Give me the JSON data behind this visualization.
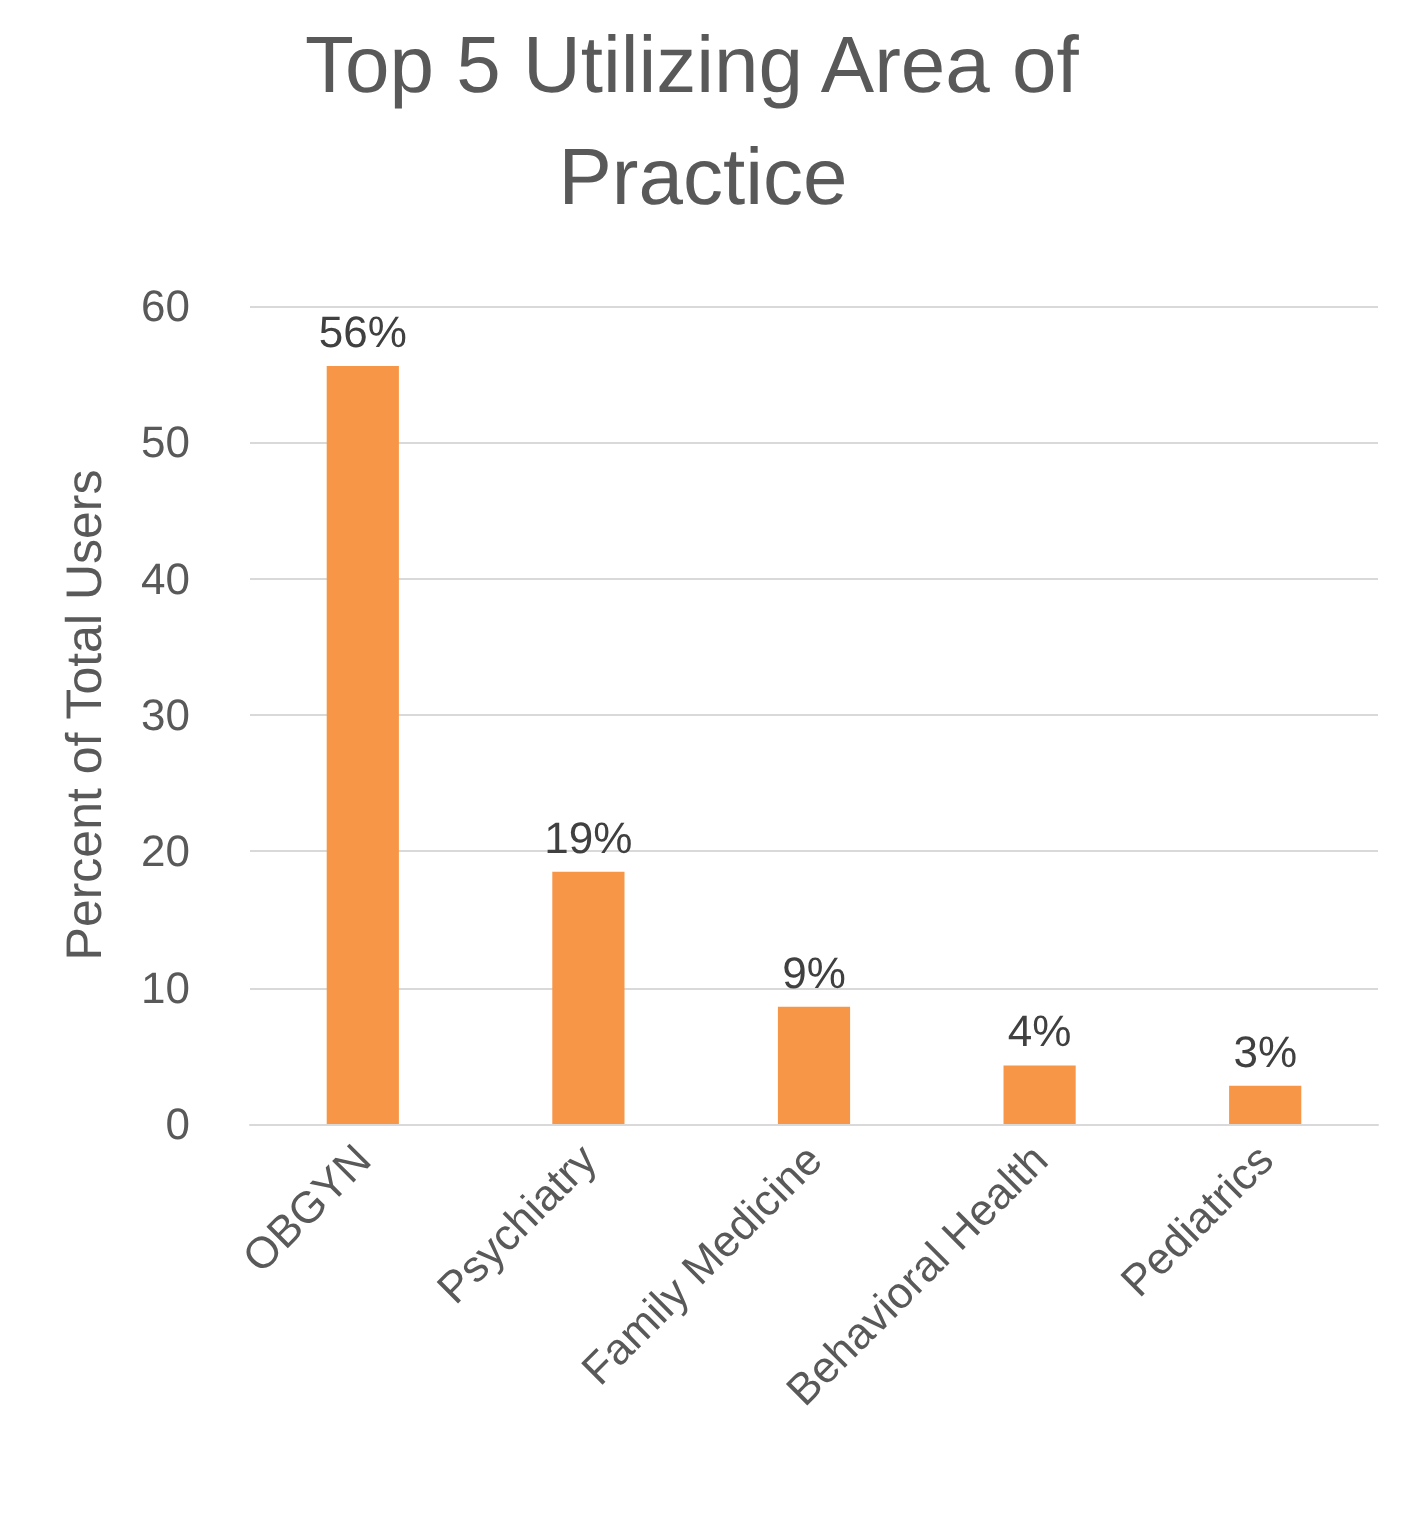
{
  "chart_data": {
    "type": "bar",
    "title": "Top 5 Utilizing Area of Practice",
    "ylabel": "Percent of Total Users",
    "categories": [
      "OBGYN",
      "Psychiatry",
      "Family Medicine",
      "Behavioral Health",
      "Pediatrics"
    ],
    "values": [
      55.6,
      18.5,
      8.6,
      4.3,
      2.8
    ],
    "value_labels": [
      "56%",
      "19%",
      "9%",
      "4%",
      "3%"
    ],
    "color": "#f79646",
    "ylim": [
      0,
      60
    ],
    "yticks": [
      0,
      10,
      20,
      30,
      40,
      50,
      60
    ],
    "grid": "y"
  }
}
